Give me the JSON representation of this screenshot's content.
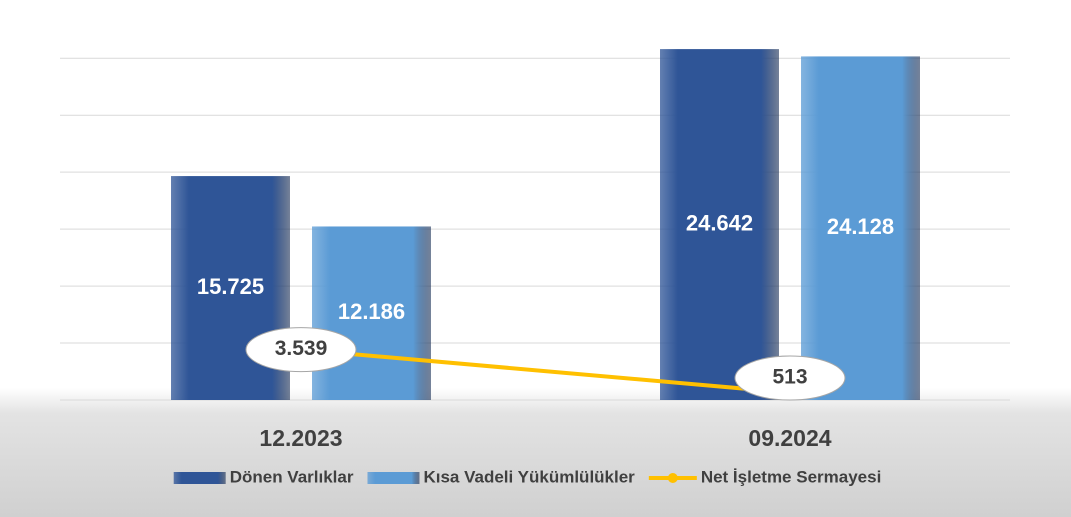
{
  "chart_data": {
    "type": "bar",
    "categories": [
      "12.2023",
      "09.2024"
    ],
    "series": [
      {
        "name": "Dönen Varlıklar",
        "color": "#2f5597",
        "values": [
          15725,
          24642
        ],
        "value_labels": [
          "15.725",
          "24.642"
        ]
      },
      {
        "name": "Kısa Vadeli Yükümlülükler",
        "color": "#5b9bd5",
        "values": [
          12186,
          24128
        ],
        "value_labels": [
          "12.186",
          "24.128"
        ]
      },
      {
        "name": "Net İşletme Sermayesi",
        "type": "line",
        "color": "#ffc000",
        "values": [
          3539,
          513
        ],
        "value_labels": [
          "3.539",
          "513"
        ]
      }
    ],
    "ylim": [
      0,
      25000
    ],
    "yticks": [
      0,
      4000,
      8000,
      12000,
      16000,
      20000,
      24000
    ],
    "grid": true,
    "legend": "bottom"
  }
}
